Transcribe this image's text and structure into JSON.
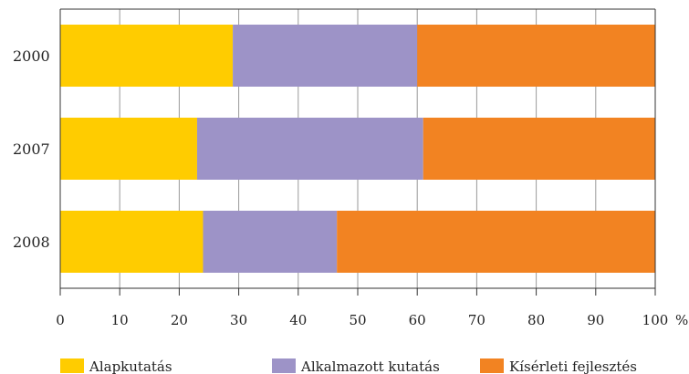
{
  "chart_data": {
    "type": "bar",
    "orientation": "horizontal",
    "stacked": true,
    "categories": [
      "2000",
      "2007",
      "2008"
    ],
    "series": [
      {
        "name": "Alapkutatás",
        "color": "#FFCC00",
        "values": [
          29,
          23,
          24
        ]
      },
      {
        "name": "Alkalmazott kutatás",
        "color": "#9D93C7",
        "values": [
          31,
          38,
          22.5
        ]
      },
      {
        "name": "Kísérleti fejlesztés",
        "color": "#F28322",
        "values": [
          40,
          39,
          53.5
        ]
      }
    ],
    "xlim": [
      0,
      100
    ],
    "xticks": [
      0,
      10,
      20,
      30,
      40,
      50,
      60,
      70,
      80,
      90,
      100
    ],
    "x_unit": "%",
    "grid": "vertical",
    "legend_position": "bottom"
  }
}
